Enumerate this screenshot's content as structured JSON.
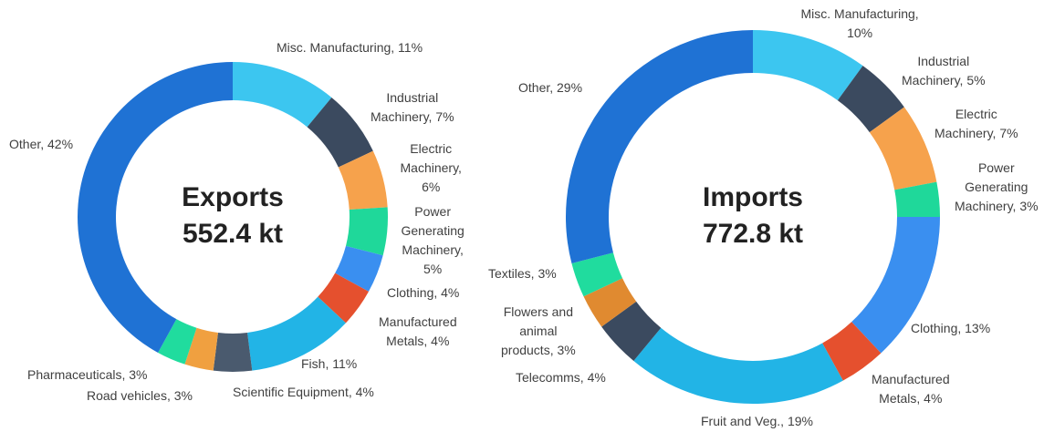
{
  "chart_data": [
    {
      "type": "donut",
      "title": "Exports",
      "center_label": "552.4 kt",
      "values": [
        11,
        7,
        6,
        5,
        4,
        4,
        11,
        4,
        3,
        3,
        42
      ],
      "value_labels": [
        "Misc. Manufacturing, 11%",
        "Industrial\nMachinery, 7%",
        "Electric\nMachinery,\n6%",
        "Power\nGenerating\nMachinery,\n5%",
        "Clothing, 4%",
        "Manufactured\nMetals, 4%",
        "Fish, 11%",
        "Scientific Equipment, 4%",
        "Road vehicles, 3%",
        "Pharmaceuticals, 3%",
        "Other, 42%"
      ],
      "colors": [
        "#3cc6f0",
        "#3b4a5f",
        "#f6a24c",
        "#1fd89a",
        "#3a8ff0",
        "#e5502e",
        "#22b4e6",
        "#4a5a6e",
        "#f0a040",
        "#20dc9e",
        "#1f72d4"
      ]
    },
    {
      "type": "donut",
      "title": "Imports",
      "center_label": "772.8 kt",
      "values": [
        10,
        5,
        7,
        3,
        13,
        4,
        19,
        4,
        3,
        3,
        29
      ],
      "value_labels": [
        "Misc. Manufacturing,\n10%",
        "Industrial\nMachinery, 5%",
        "Electric\nMachinery, 7%",
        "Power\nGenerating\nMachinery, 3%",
        "Clothing, 13%",
        "Manufactured\nMetals, 4%",
        "Fruit and Veg., 19%",
        "Telecomms, 4%",
        "Flowers and\nanimal\nproducts, 3%",
        "Textiles, 3%",
        "Other, 29%"
      ],
      "colors": [
        "#3cc6f0",
        "#3b4a5f",
        "#f6a24c",
        "#1fd89a",
        "#3a8ff0",
        "#e5502e",
        "#22b4e6",
        "#3b4a5f",
        "#e08a30",
        "#20dc9e",
        "#1f72d4"
      ]
    }
  ]
}
